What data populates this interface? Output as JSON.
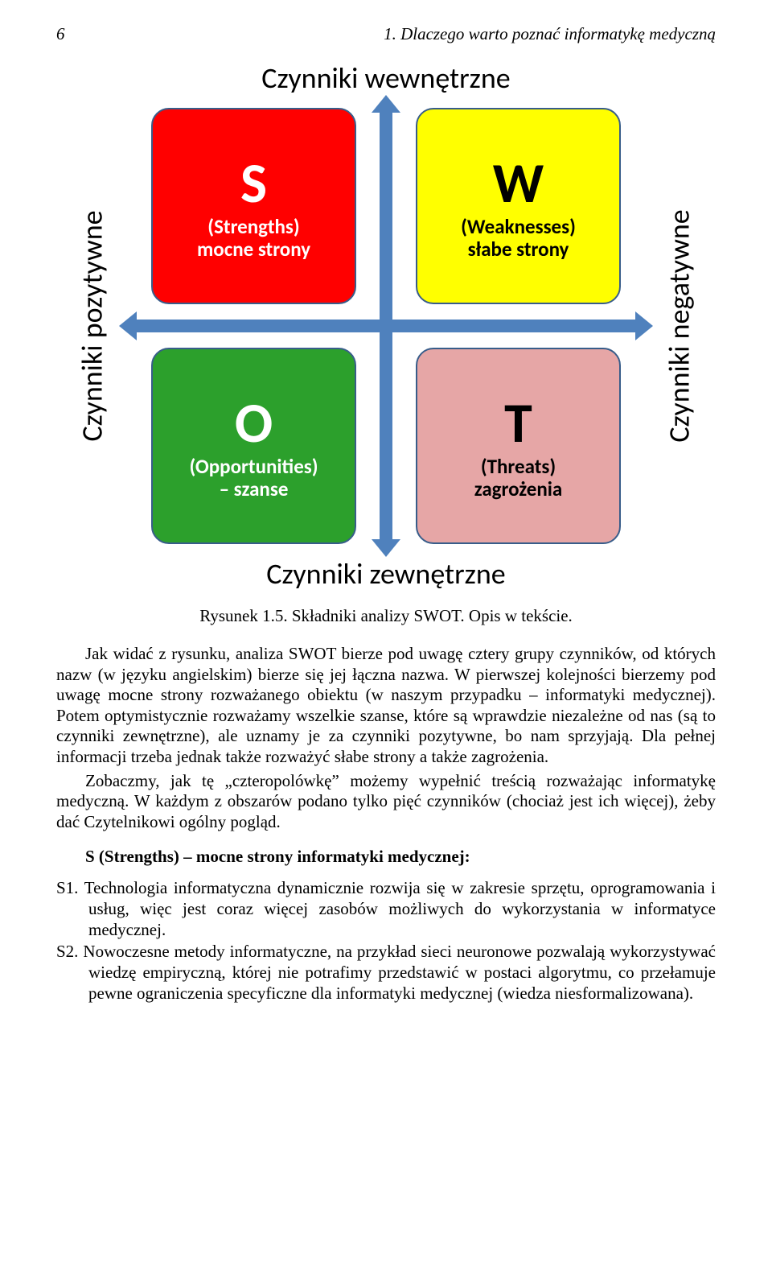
{
  "header": {
    "page_number": "6",
    "chapter_title": "1. Dlaczego warto poznać informatykę medyczną"
  },
  "diagram": {
    "type": "infographic",
    "axis_labels": {
      "top": "Czynniki wewnętrzne",
      "bottom": "Czynniki zewnętrzne",
      "left": "Czynniki pozytywne",
      "right": "Czynniki negatywne"
    },
    "arrow_color": "#4f81bd",
    "quadrants": {
      "tl": {
        "letter": "S",
        "sub1": "(Strengths)",
        "sub2": "mocne strony",
        "bg_color": "#ff0000",
        "text_color": "#ffffff",
        "border_color": "#385d8a"
      },
      "tr": {
        "letter": "W",
        "sub1": "(Weaknesses)",
        "sub2": "słabe strony",
        "bg_color": "#ffff00",
        "text_color": "#000000",
        "border_color": "#385d8a"
      },
      "bl": {
        "letter": "O",
        "sub1": "(Opportunities)",
        "sub2": "– szanse",
        "bg_color": "#2ca02c",
        "text_color": "#ffffff",
        "border_color": "#385d8a"
      },
      "br": {
        "letter": "T",
        "sub1": "(Threats)",
        "sub2": "zagrożenia",
        "bg_color": "#e6a6a6",
        "text_color": "#000000",
        "border_color": "#385d8a"
      }
    }
  },
  "caption": "Rysunek  1.5. Składniki analizy SWOT. Opis w tekście.",
  "paragraphs": {
    "p1": "Jak widać z rysunku, analiza SWOT bierze pod uwagę cztery grupy czynników, od których nazw (w języku angielskim) bierze się jej łączna nazwa. W pierwszej kolejności bierzemy pod uwagę mocne strony rozważanego obiektu (w naszym przypadku – informatyki medycznej). Potem optymistycznie rozważamy wszelkie szanse, które są wprawdzie niezależne od nas (są to czynniki zewnętrzne), ale uznamy je za czynniki pozytywne, bo nam sprzyjają. Dla pełnej informacji trzeba jednak także rozważyć słabe strony a także zagrożenia.",
    "p2": "Zobaczmy, jak tę „czteropolówkę” możemy wypełnić treścią rozważając informatykę medyczną. W każdym z obszarów podano tylko pięć czynników (chociaż jest ich więcej), żeby dać Czytelnikowi ogólny pogląd."
  },
  "section_heading": "S (Strengths) – mocne strony informatyki medycznej:",
  "list": {
    "s1": "S1. Technologia informatyczna dynamicznie rozwija się w zakresie sprzętu, oprogramowania i usług, więc jest coraz więcej zasobów możliwych do wykorzystania w informatyce medycznej.",
    "s2": "S2. Nowoczesne metody informatyczne, na przykład sieci neuronowe pozwalają wykorzystywać wiedzę empiryczną, której nie potrafimy przedstawić w postaci algorytmu, co przełamuje pewne ograniczenia specyficzne dla informatyki medycznej (wiedza niesformalizowana)."
  }
}
